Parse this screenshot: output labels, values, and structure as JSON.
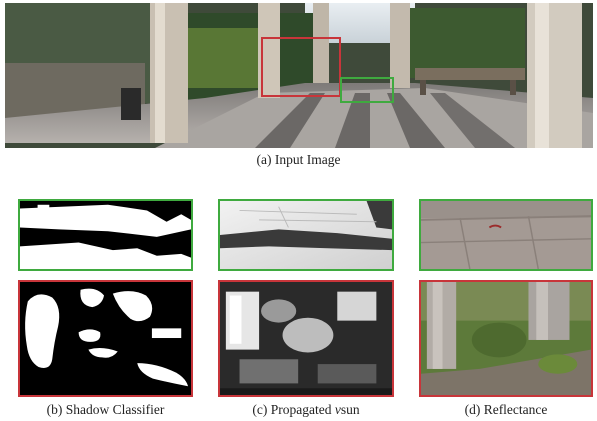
{
  "figure": {
    "top_caption": "(a) Input Image",
    "panels": [
      {
        "label": "(b) Shadow Classifier"
      },
      {
        "label_prefix": "(c) Propagated ",
        "label_italic": "v",
        "label_suffix": "sun"
      },
      {
        "label": "(d) Reflectance"
      }
    ]
  },
  "colors": {
    "green_box": "#3faa3f",
    "red_box": "#c8353a"
  }
}
